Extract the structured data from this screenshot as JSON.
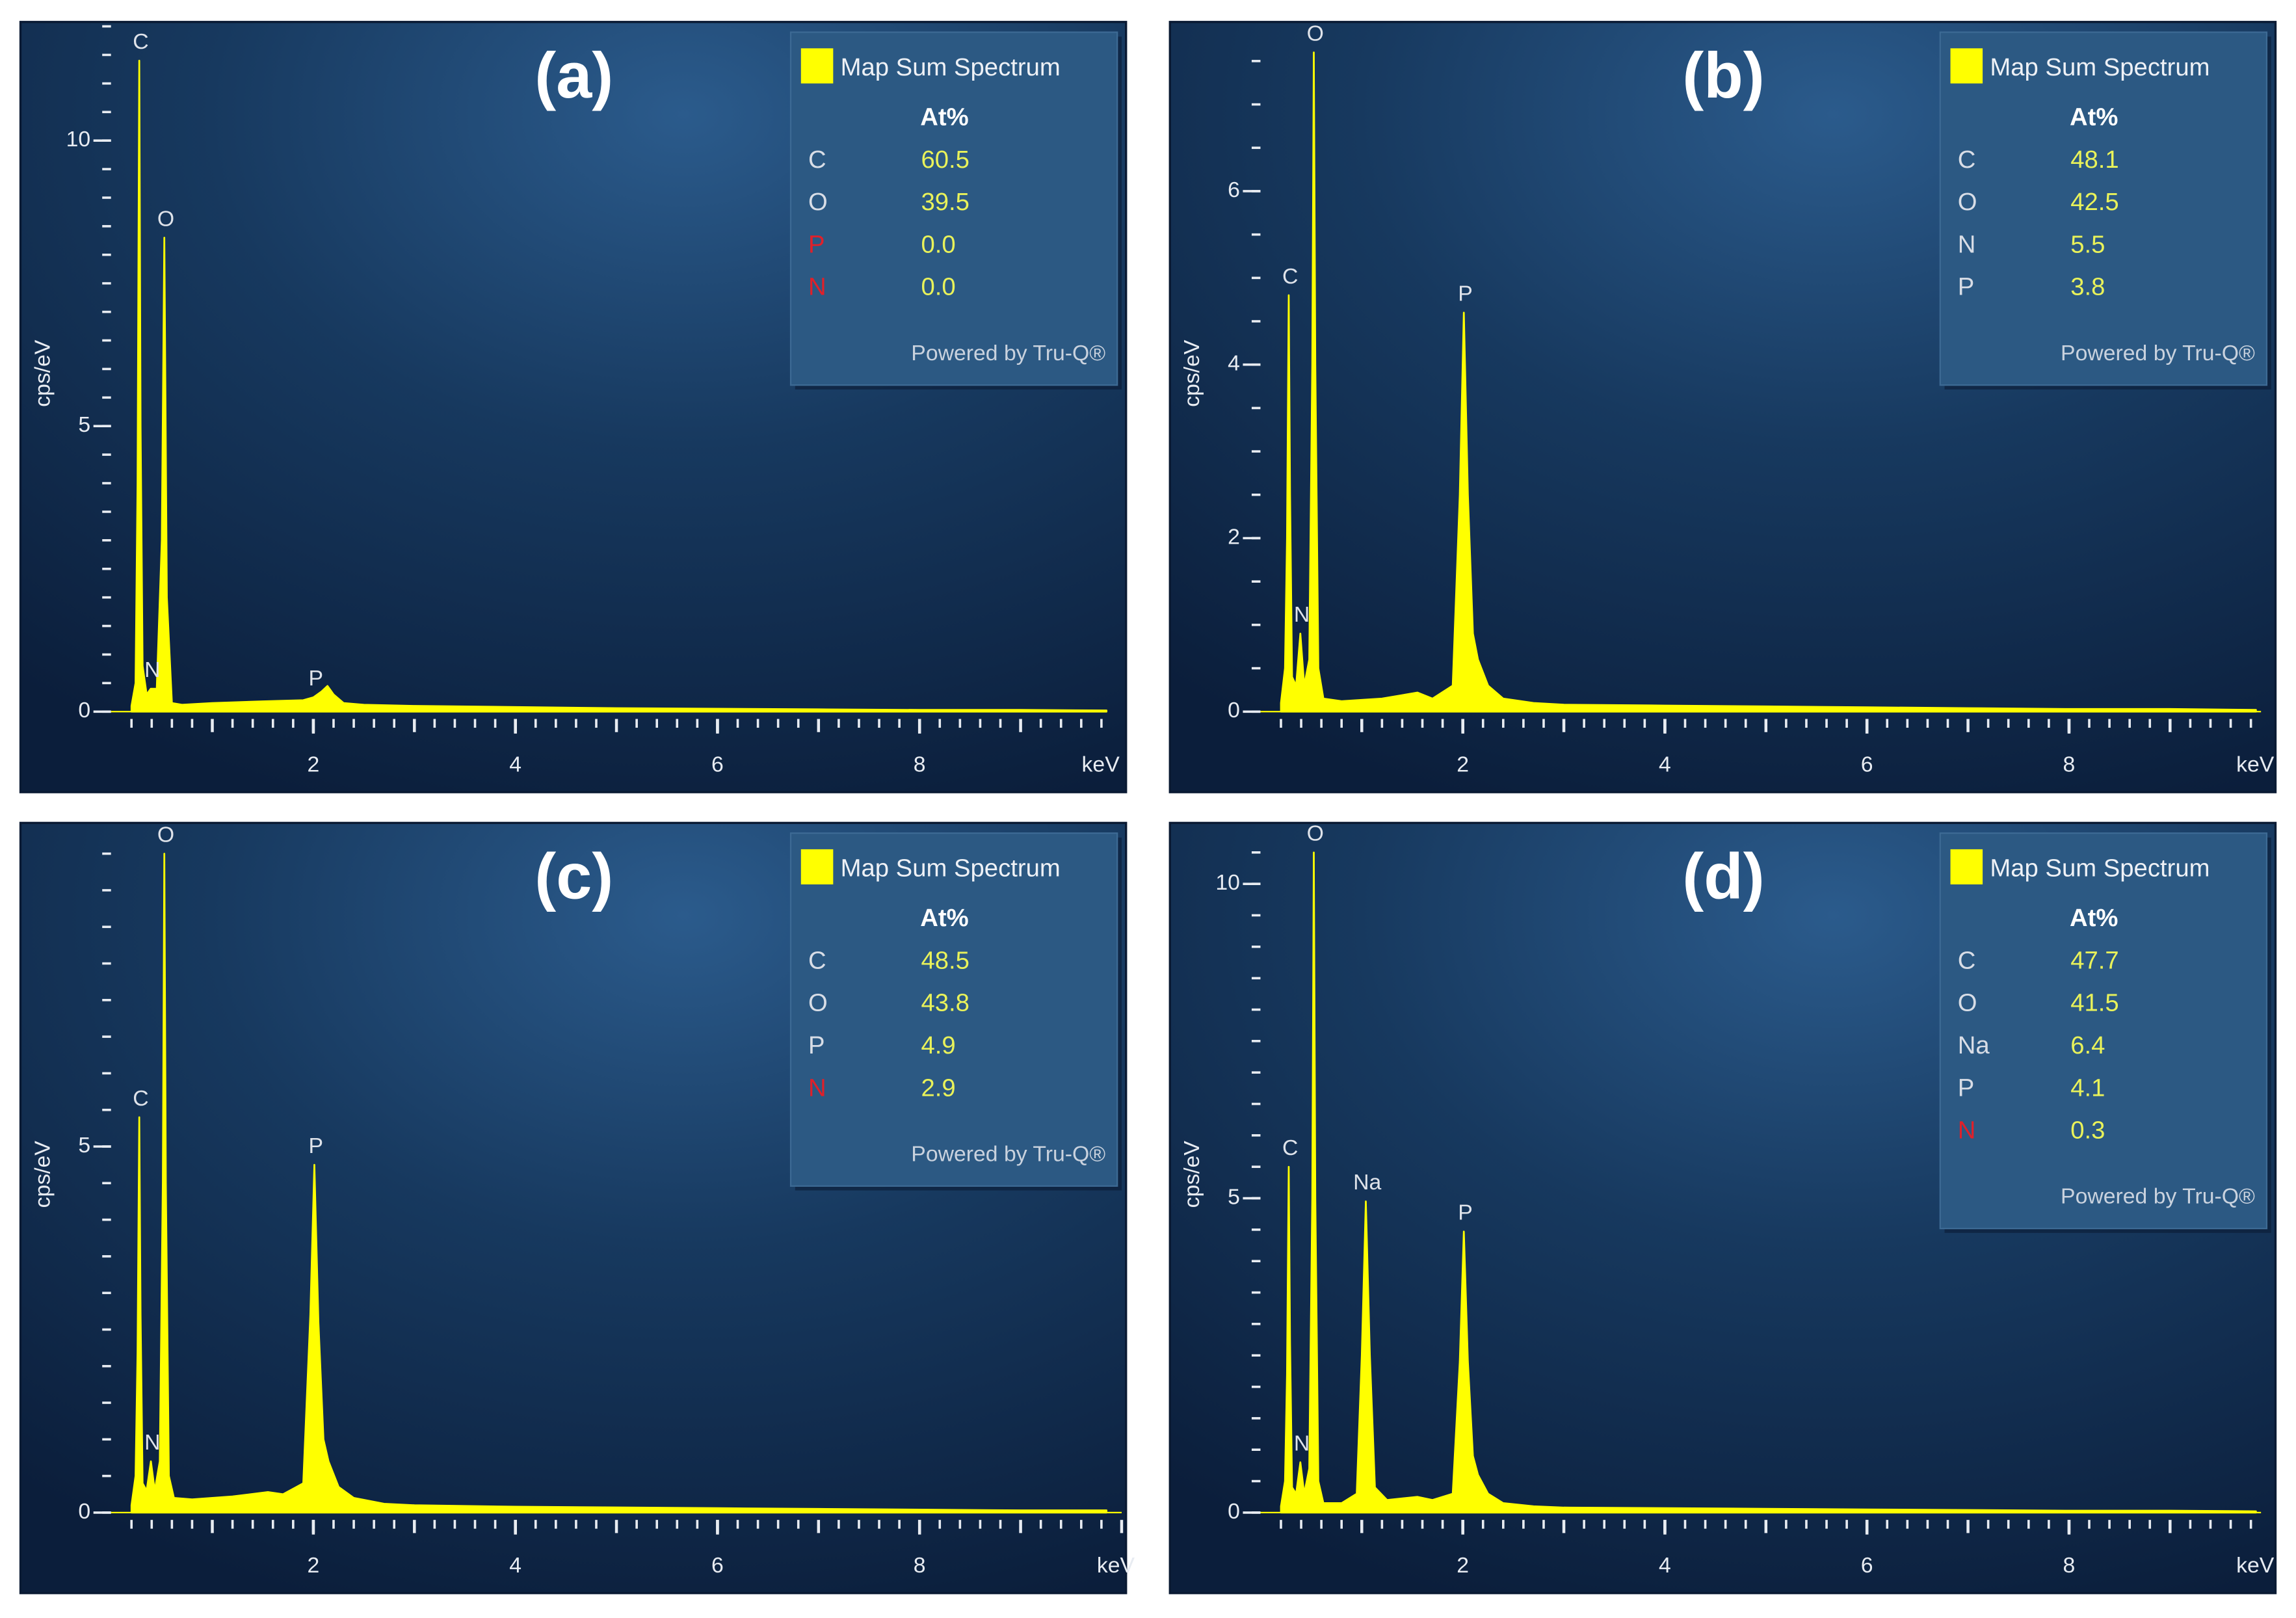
{
  "chart_data": [
    {
      "type": "area",
      "title": "(a)",
      "xlabel": "keV",
      "ylabel": "cps/eV",
      "xlim": [
        0,
        9.85
      ],
      "xticks": [
        2,
        4,
        6,
        8
      ],
      "ylim": [
        0,
        12
      ],
      "yticks": [
        0,
        5,
        10
      ],
      "x": [
        0.2,
        0.24,
        0.26,
        0.277,
        0.29,
        0.31,
        0.35,
        0.39,
        0.45,
        0.5,
        0.525,
        0.55,
        0.6,
        0.7,
        1.0,
        1.5,
        1.9,
        2.0,
        2.08,
        2.14,
        2.2,
        2.3,
        2.5,
        3,
        4,
        5,
        6,
        7,
        8,
        9,
        9.85
      ],
      "series": [
        {
          "name": "Map Sum Spectrum",
          "color": "#ffff00",
          "values": [
            0.1,
            0.5,
            4,
            11.4,
            5,
            0.8,
            0.3,
            0.4,
            0.4,
            3,
            8.3,
            2,
            0.15,
            0.12,
            0.15,
            0.18,
            0.2,
            0.25,
            0.35,
            0.45,
            0.3,
            0.15,
            0.12,
            0.1,
            0.08,
            0.06,
            0.05,
            0.04,
            0.03,
            0.03,
            0.02
          ]
        }
      ],
      "annotations": [
        {
          "text": "C",
          "x": 0.277
        },
        {
          "text": "N",
          "x": 0.392
        },
        {
          "text": "O",
          "x": 0.525
        },
        {
          "text": "P",
          "x": 2.01
        }
      ],
      "composition": {
        "header": "At%",
        "elements": [
          "C",
          "O",
          "P",
          "N"
        ],
        "values": [
          60.5,
          39.5,
          0,
          0
        ],
        "value_labels": [
          "60.5",
          "39.5",
          "0.0",
          "0.0"
        ],
        "element_colors": [
          "#d8dde6",
          "#d8dde6",
          "#e0202a",
          "#e0202a"
        ],
        "footer": "Powered by Tru-Q®"
      }
    },
    {
      "type": "area",
      "title": "(b)",
      "xlabel": "keV",
      "ylabel": "cps/eV",
      "xlim": [
        0,
        9.9
      ],
      "xticks": [
        2,
        4,
        6,
        8
      ],
      "ylim": [
        0,
        7.9
      ],
      "yticks": [
        0,
        2,
        4,
        6
      ],
      "x": [
        0.2,
        0.24,
        0.26,
        0.277,
        0.29,
        0.31,
        0.35,
        0.392,
        0.43,
        0.48,
        0.51,
        0.525,
        0.54,
        0.57,
        0.62,
        0.8,
        1.2,
        1.55,
        1.7,
        1.9,
        1.97,
        2.01,
        2.05,
        2.1,
        2.15,
        2.25,
        2.4,
        2.7,
        3,
        4,
        5,
        6,
        7,
        8,
        9,
        9.85
      ],
      "series": [
        {
          "name": "Map Sum Spectrum",
          "color": "#ffff00",
          "values": [
            0.1,
            0.5,
            2,
            4.8,
            2.5,
            0.4,
            0.3,
            0.9,
            0.3,
            0.6,
            4,
            7.6,
            4,
            0.5,
            0.15,
            0.12,
            0.15,
            0.22,
            0.15,
            0.3,
            2.5,
            4.6,
            2.5,
            0.9,
            0.6,
            0.3,
            0.15,
            0.1,
            0.08,
            0.07,
            0.06,
            0.05,
            0.04,
            0.03,
            0.03,
            0.02
          ]
        }
      ],
      "annotations": [
        {
          "text": "C",
          "x": 0.277
        },
        {
          "text": "N",
          "x": 0.392
        },
        {
          "text": "O",
          "x": 0.525
        },
        {
          "text": "P",
          "x": 2.01
        }
      ],
      "composition": {
        "header": "At%",
        "elements": [
          "C",
          "O",
          "N",
          "P"
        ],
        "values": [
          48.1,
          42.5,
          5.5,
          3.8
        ],
        "element_colors": [
          "#d8dde6",
          "#d8dde6",
          "#d8dde6",
          "#d8dde6"
        ],
        "footer": "Powered by Tru-Q®"
      }
    },
    {
      "type": "area",
      "title": "(c)",
      "xlabel": "keV",
      "ylabel": "cps/eV",
      "xlim": [
        0,
        10
      ],
      "xticks": [
        2,
        4,
        6,
        8
      ],
      "ylim": [
        0,
        9.36
      ],
      "yticks": [
        0,
        5
      ],
      "x": [
        0.2,
        0.24,
        0.26,
        0.277,
        0.29,
        0.31,
        0.35,
        0.392,
        0.43,
        0.48,
        0.51,
        0.525,
        0.54,
        0.57,
        0.62,
        0.8,
        1.2,
        1.55,
        1.7,
        1.9,
        1.97,
        2.01,
        2.05,
        2.1,
        2.15,
        2.25,
        2.4,
        2.7,
        3,
        4,
        5,
        6,
        7,
        8,
        9,
        9.85
      ],
      "series": [
        {
          "name": "Map Sum Spectrum",
          "color": "#ffff00",
          "values": [
            0.1,
            0.5,
            2.2,
            5.4,
            2.7,
            0.4,
            0.3,
            0.7,
            0.3,
            0.7,
            4.5,
            9.0,
            4.5,
            0.5,
            0.2,
            0.18,
            0.22,
            0.28,
            0.25,
            0.4,
            2.7,
            4.75,
            2.6,
            1.0,
            0.7,
            0.35,
            0.2,
            0.12,
            0.1,
            0.08,
            0.07,
            0.06,
            0.05,
            0.04,
            0.03,
            0.03
          ]
        }
      ],
      "annotations": [
        {
          "text": "C",
          "x": 0.277
        },
        {
          "text": "N",
          "x": 0.392
        },
        {
          "text": "O",
          "x": 0.525
        },
        {
          "text": "P",
          "x": 2.01
        }
      ],
      "composition": {
        "header": "At%",
        "elements": [
          "C",
          "O",
          "P",
          "N"
        ],
        "values": [
          48.5,
          43.8,
          4.9,
          2.9
        ],
        "element_colors": [
          "#d8dde6",
          "#d8dde6",
          "#d8dde6",
          "#e0202a"
        ],
        "footer": "Powered by Tru-Q®"
      }
    },
    {
      "type": "area",
      "title": "(d)",
      "xlabel": "keV",
      "ylabel": "cps/eV",
      "xlim": [
        0,
        9.9
      ],
      "xticks": [
        2,
        4,
        6,
        8
      ],
      "ylim": [
        0,
        10.9
      ],
      "yticks": [
        0,
        5,
        10
      ],
      "x": [
        0.2,
        0.24,
        0.26,
        0.277,
        0.29,
        0.31,
        0.35,
        0.392,
        0.43,
        0.48,
        0.51,
        0.525,
        0.54,
        0.57,
        0.62,
        0.8,
        0.95,
        1.0,
        1.04,
        1.08,
        1.13,
        1.25,
        1.55,
        1.7,
        1.9,
        1.97,
        2.01,
        2.05,
        2.1,
        2.15,
        2.25,
        2.4,
        2.7,
        3,
        4,
        5,
        6,
        7,
        8,
        9,
        9.85
      ],
      "series": [
        {
          "name": "Map Sum Spectrum",
          "color": "#ffff00",
          "values": [
            0.1,
            0.5,
            2.2,
            5.5,
            2.7,
            0.4,
            0.3,
            0.8,
            0.3,
            0.7,
            5,
            10.5,
            5,
            0.5,
            0.15,
            0.15,
            0.3,
            2.5,
            4.95,
            2.5,
            0.4,
            0.2,
            0.25,
            0.2,
            0.3,
            2.4,
            4.47,
            2.4,
            0.9,
            0.6,
            0.3,
            0.15,
            0.1,
            0.08,
            0.07,
            0.06,
            0.05,
            0.04,
            0.03,
            0.03,
            0.02
          ]
        }
      ],
      "annotations": [
        {
          "text": "C",
          "x": 0.277
        },
        {
          "text": "N",
          "x": 0.392
        },
        {
          "text": "O",
          "x": 0.525
        },
        {
          "text": "Na",
          "x": 1.04
        },
        {
          "text": "P",
          "x": 2.01
        }
      ],
      "composition": {
        "header": "At%",
        "elements": [
          "C",
          "O",
          "Na",
          "P",
          "N"
        ],
        "values": [
          47.7,
          41.5,
          6.4,
          4.1,
          0.3
        ],
        "element_colors": [
          "#d8dde6",
          "#d8dde6",
          "#d8dde6",
          "#d8dde6",
          "#e0202a"
        ],
        "footer": "Powered by Tru-Q®"
      }
    }
  ]
}
